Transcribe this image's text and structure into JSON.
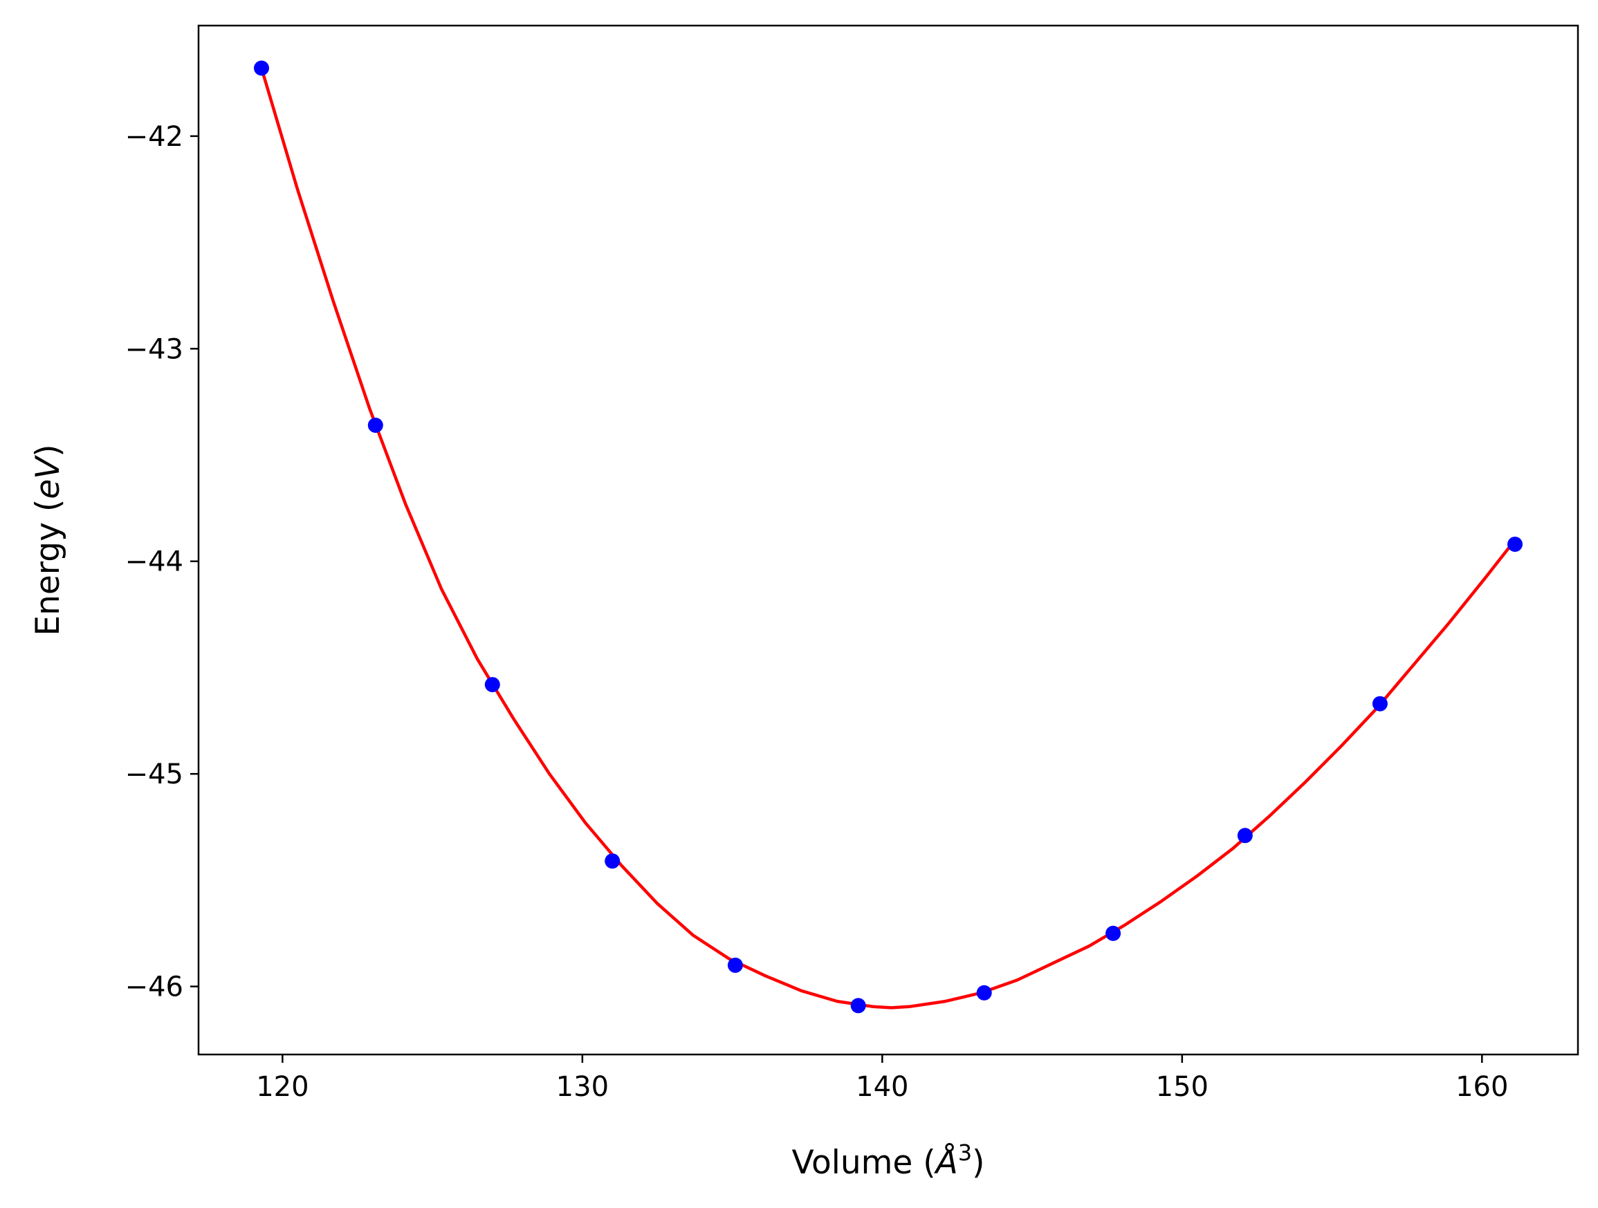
{
  "chart_data": {
    "type": "scatter",
    "xlabel_prefix": "Volume (",
    "xlabel_unit": "Å",
    "xlabel_sup": "3",
    "xlabel_suffix": ")",
    "ylabel_prefix": "Energy (",
    "ylabel_unit": "eV",
    "ylabel_suffix": ")",
    "xlim": [
      117.2,
      163.2
    ],
    "ylim": [
      -46.32,
      -41.48
    ],
    "xticks": [
      120,
      130,
      140,
      150,
      160
    ],
    "xtick_labels": [
      "120",
      "130",
      "140",
      "150",
      "160"
    ],
    "yticks": [
      -42,
      -43,
      -44,
      -45,
      -46
    ],
    "ytick_labels": [
      "−42",
      "−43",
      "−44",
      "−45",
      "−46"
    ],
    "grid": false,
    "series": [
      {
        "kind": "points",
        "color": "#0000ff",
        "x": [
          119.3,
          123.1,
          127.0,
          131.0,
          135.1,
          139.2,
          143.4,
          147.7,
          152.1,
          156.6,
          161.1
        ],
        "y": [
          -41.68,
          -43.36,
          -44.58,
          -45.41,
          -45.9,
          -46.09,
          -46.03,
          -45.75,
          -45.29,
          -44.67,
          -43.92
        ]
      },
      {
        "kind": "fit-curve",
        "color": "#ff0000",
        "x": [
          119.3,
          120.5,
          121.7,
          122.9,
          124.1,
          125.3,
          126.5,
          127.7,
          128.9,
          130.1,
          131.3,
          132.5,
          133.7,
          134.9,
          136.1,
          137.3,
          138.5,
          139.7,
          140.3,
          140.9,
          142.1,
          143.3,
          144.5,
          145.7,
          146.9,
          148.1,
          149.3,
          150.5,
          151.7,
          152.9,
          154.1,
          155.3,
          156.5,
          157.7,
          158.9,
          160.1,
          161.1
        ],
        "y": [
          -41.68,
          -42.25,
          -42.78,
          -43.28,
          -43.73,
          -44.13,
          -44.46,
          -44.74,
          -45.0,
          -45.23,
          -45.43,
          -45.61,
          -45.76,
          -45.87,
          -45.95,
          -46.02,
          -46.07,
          -46.095,
          -46.1,
          -46.095,
          -46.07,
          -46.03,
          -45.97,
          -45.89,
          -45.81,
          -45.71,
          -45.6,
          -45.48,
          -45.35,
          -45.2,
          -45.04,
          -44.87,
          -44.69,
          -44.49,
          -44.29,
          -44.08,
          -43.9
        ]
      }
    ]
  }
}
